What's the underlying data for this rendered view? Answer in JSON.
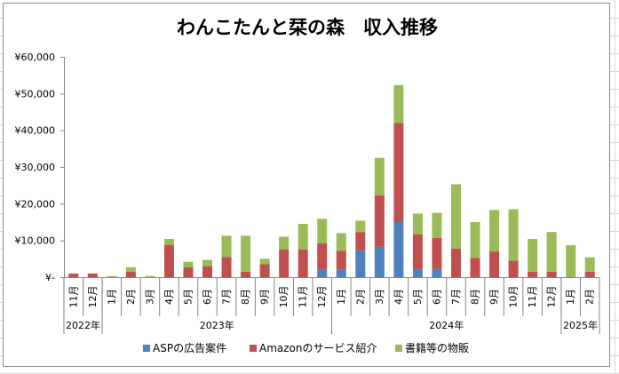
{
  "chart_data": {
    "type": "bar",
    "stacked": true,
    "title": "わんこたんと栞の森　収入推移",
    "xlabel": "",
    "ylabel": "",
    "ylim": [
      0,
      60000
    ],
    "yticks": [
      0,
      10000,
      20000,
      30000,
      40000,
      50000,
      60000
    ],
    "ytick_labels": [
      "¥-",
      "¥10,000",
      "¥20,000",
      "¥30,000",
      "¥40,000",
      "¥50,000",
      "¥60,000"
    ],
    "grid": false,
    "legend_position": "bottom",
    "categories": [
      "11月",
      "12月",
      "1月",
      "2月",
      "3月",
      "4月",
      "5月",
      "6月",
      "7月",
      "8月",
      "9月",
      "10月",
      "11月",
      "12月",
      "1月",
      "2月",
      "3月",
      "4月",
      "5月",
      "6月",
      "7月",
      "8月",
      "9月",
      "10月",
      "11月",
      "12月",
      "1月",
      "2月"
    ],
    "year_groups": [
      {
        "label": "2022年",
        "count": 2
      },
      {
        "label": "2023年",
        "count": 12
      },
      {
        "label": "2024年",
        "count": 12
      },
      {
        "label": "2025年",
        "count": 2
      }
    ],
    "series": [
      {
        "name": "ASPの広告案件",
        "color": "#4f81bd",
        "values": [
          0,
          0,
          0,
          0,
          0,
          0,
          0,
          0,
          0,
          0,
          0,
          0,
          0,
          2200,
          2000,
          7300,
          8300,
          15000,
          2200,
          2200,
          0,
          0,
          0,
          0,
          0,
          0,
          0,
          0
        ]
      },
      {
        "name": "Amazonのサービス紹介",
        "color": "#c0504d",
        "values": [
          1000,
          1000,
          0,
          1500,
          0,
          8800,
          2700,
          3000,
          5500,
          1500,
          3500,
          7500,
          7500,
          7000,
          5200,
          5000,
          14000,
          27000,
          9500,
          8500,
          7800,
          5200,
          7000,
          4500,
          1500,
          1500,
          0,
          1500
        ]
      },
      {
        "name": "書籍等の物販",
        "color": "#9bbb59",
        "values": [
          0,
          0,
          300,
          1200,
          300,
          1600,
          1500,
          1700,
          5800,
          9800,
          1500,
          3500,
          7000,
          6700,
          4800,
          3100,
          10200,
          10300,
          5600,
          6800,
          17500,
          9800,
          11300,
          14000,
          8900,
          10800,
          8700,
          3900
        ]
      }
    ]
  }
}
